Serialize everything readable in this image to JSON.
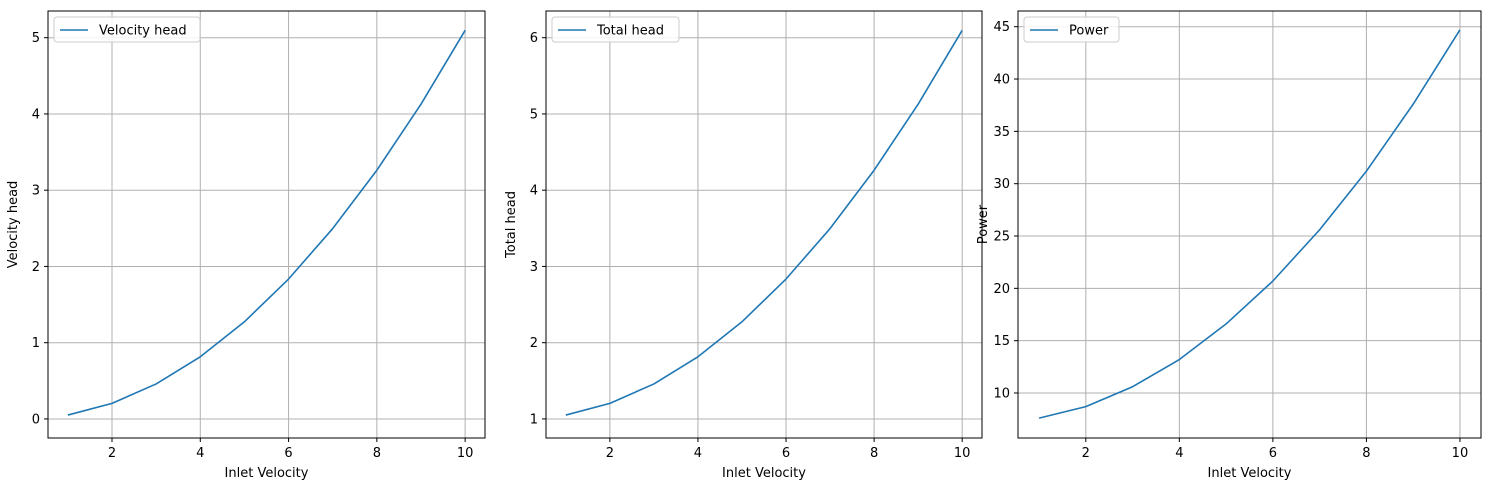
{
  "chart_data": [
    {
      "type": "line",
      "xlabel": "Inlet Velocity",
      "ylabel": "Velocity head",
      "xlim": [
        0.55,
        10.45
      ],
      "ylim": [
        -0.25,
        5.35
      ],
      "xticks": [
        2,
        4,
        6,
        8,
        10
      ],
      "yticks": [
        0,
        1,
        2,
        3,
        4,
        5
      ],
      "grid": true,
      "legend_placement": "upper left",
      "series": [
        {
          "name": "Velocity head",
          "color": "#1f77b4",
          "x": [
            1,
            2,
            3,
            4,
            5,
            6,
            7,
            8,
            9,
            10
          ],
          "y": [
            0.051,
            0.204,
            0.459,
            0.815,
            1.274,
            1.835,
            2.497,
            3.262,
            4.128,
            5.097
          ]
        }
      ]
    },
    {
      "type": "line",
      "xlabel": "Inlet Velocity",
      "ylabel": "Total head",
      "xlim": [
        0.55,
        10.45
      ],
      "ylim": [
        0.75,
        6.35
      ],
      "xticks": [
        2,
        4,
        6,
        8,
        10
      ],
      "yticks": [
        1,
        2,
        3,
        4,
        5,
        6
      ],
      "grid": true,
      "legend_placement": "upper left",
      "series": [
        {
          "name": "Total head",
          "color": "#1f77b4",
          "x": [
            1,
            2,
            3,
            4,
            5,
            6,
            7,
            8,
            9,
            10
          ],
          "y": [
            1.051,
            1.204,
            1.459,
            1.815,
            2.274,
            2.835,
            3.497,
            4.262,
            5.128,
            6.097
          ]
        }
      ]
    },
    {
      "type": "line",
      "xlabel": "Inlet Velocity",
      "ylabel": "Power",
      "xlim": [
        0.55,
        10.45
      ],
      "ylim": [
        5.7,
        46.5
      ],
      "xticks": [
        2,
        4,
        6,
        8,
        10
      ],
      "yticks": [
        10,
        15,
        20,
        25,
        30,
        35,
        40,
        45
      ],
      "grid": true,
      "legend_placement": "upper left",
      "series": [
        {
          "name": "Power",
          "color": "#1f77b4",
          "x": [
            1,
            2,
            3,
            4,
            5,
            6,
            7,
            8,
            9,
            10
          ],
          "y": [
            7.6,
            8.7,
            10.6,
            13.2,
            16.6,
            20.7,
            25.6,
            31.2,
            37.6,
            44.7
          ]
        }
      ]
    }
  ]
}
